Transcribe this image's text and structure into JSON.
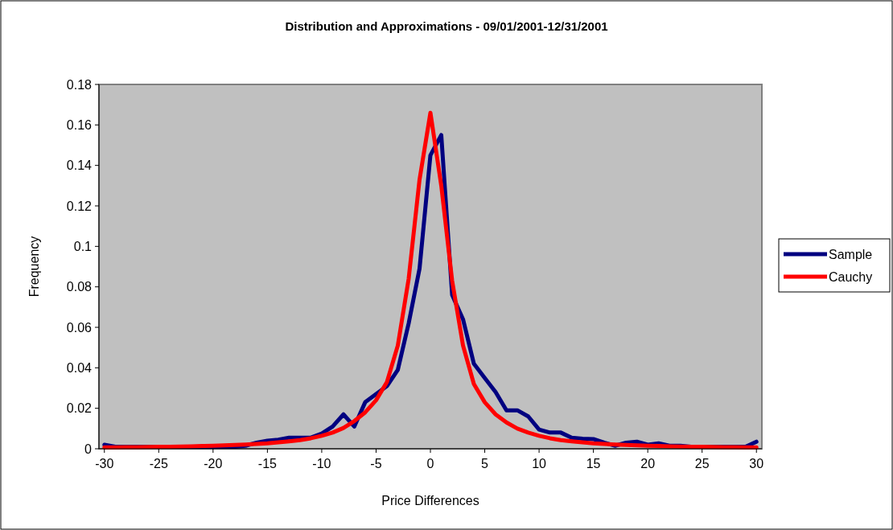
{
  "chart_data": {
    "type": "line",
    "title": "Distribution and Approximations - 09/01/2001-12/31/2001",
    "xlabel": "Price Differences",
    "ylabel": "Frequency",
    "x": [
      -30,
      -29,
      -28,
      -27,
      -26,
      -25,
      -24,
      -23,
      -22,
      -21,
      -20,
      -19,
      -18,
      -17,
      -16,
      -15,
      -14,
      -13,
      -12,
      -11,
      -10,
      -9,
      -8,
      -7,
      -6,
      -5,
      -4,
      -3,
      -2,
      -1,
      0,
      1,
      2,
      3,
      4,
      5,
      6,
      7,
      8,
      9,
      10,
      11,
      12,
      13,
      14,
      15,
      16,
      17,
      18,
      19,
      20,
      21,
      22,
      23,
      24,
      25,
      26,
      27,
      28,
      29,
      30
    ],
    "series": [
      {
        "name": "Sample",
        "color": "#000080",
        "values": [
          0.002,
          0.001,
          0.001,
          0.001,
          0.001,
          0.001,
          0.001,
          0.001,
          0.001,
          0.001,
          0.001,
          0.001,
          0.001,
          0.0015,
          0.003,
          0.004,
          0.0045,
          0.0055,
          0.0055,
          0.0055,
          0.0075,
          0.011,
          0.017,
          0.011,
          0.023,
          0.027,
          0.031,
          0.039,
          0.062,
          0.089,
          0.145,
          0.155,
          0.076,
          0.064,
          0.042,
          0.035,
          0.028,
          0.019,
          0.019,
          0.016,
          0.0095,
          0.008,
          0.008,
          0.0055,
          0.005,
          0.0048,
          0.003,
          0.0015,
          0.003,
          0.0035,
          0.002,
          0.0027,
          0.0015,
          0.0015,
          0.001,
          0.001,
          0.001,
          0.001,
          0.001,
          0.001,
          0.0035
        ]
      },
      {
        "name": "Cauchy",
        "color": "#ff0000",
        "values": [
          0.0007,
          0.0007,
          0.0008,
          0.0008,
          0.0009,
          0.001,
          0.001,
          0.0011,
          0.0012,
          0.0014,
          0.0015,
          0.0017,
          0.0019,
          0.0021,
          0.0024,
          0.0027,
          0.0032,
          0.0037,
          0.0043,
          0.0052,
          0.0064,
          0.008,
          0.0103,
          0.0137,
          0.018,
          0.024,
          0.033,
          0.051,
          0.084,
          0.133,
          0.166,
          0.13,
          0.083,
          0.051,
          0.032,
          0.023,
          0.017,
          0.013,
          0.01,
          0.008,
          0.0064,
          0.0052,
          0.0043,
          0.0037,
          0.0032,
          0.0027,
          0.0024,
          0.0021,
          0.0019,
          0.0017,
          0.0015,
          0.0014,
          0.0012,
          0.0011,
          0.001,
          0.001,
          0.0009,
          0.0008,
          0.0008,
          0.0007,
          0.0007
        ]
      }
    ],
    "xlim": [
      -30.5,
      30.5
    ],
    "xticks": [
      -30,
      -25,
      -20,
      -15,
      -10,
      -5,
      0,
      5,
      10,
      15,
      20,
      25,
      30
    ],
    "ylim": [
      0,
      0.18
    ],
    "yticks": [
      0,
      0.02,
      0.04,
      0.06,
      0.08,
      0.1,
      0.12,
      0.14,
      0.16,
      0.18
    ],
    "grid": false,
    "legend": "right"
  }
}
